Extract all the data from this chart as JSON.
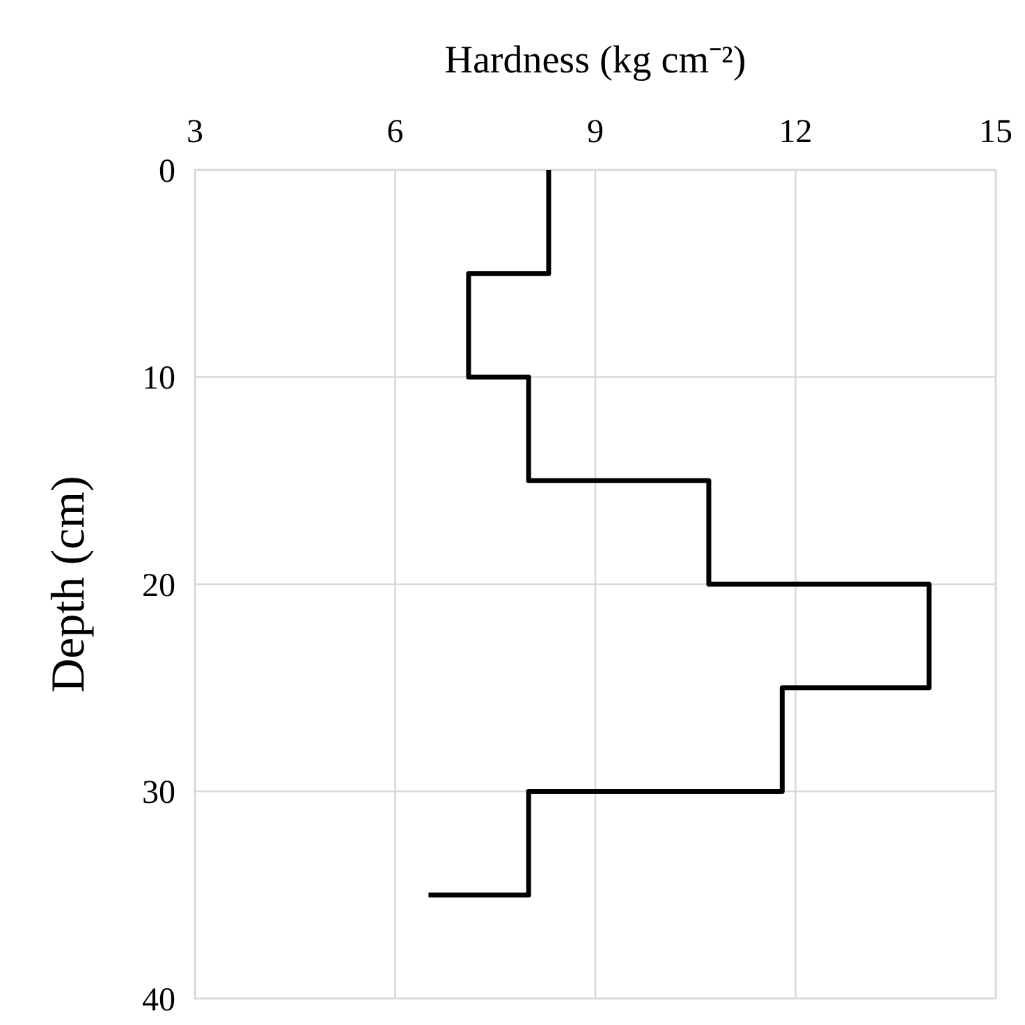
{
  "chart_data": {
    "type": "line",
    "xlabel": "Hardness (kg cm⁻²)",
    "ylabel": "Depth (cm)",
    "xlim": [
      3,
      15
    ],
    "xticks": [
      3,
      6,
      9,
      12,
      15
    ],
    "ylim": [
      40,
      0
    ],
    "yticks": [
      0,
      10,
      20,
      30,
      40
    ],
    "grid": true,
    "marker": "none",
    "line_style": "solid",
    "series": [
      {
        "color": "#000000",
        "x": [
          8.3,
          8.3,
          7.1,
          7.1,
          8.0,
          8.0,
          10.7,
          10.7,
          14.0,
          14.0,
          11.8,
          11.8,
          8.0,
          8.0,
          6.5
        ],
        "values": [
          0,
          5,
          5,
          10,
          10,
          15,
          15,
          20,
          20,
          25,
          25,
          30,
          30,
          35,
          35
        ]
      }
    ]
  }
}
